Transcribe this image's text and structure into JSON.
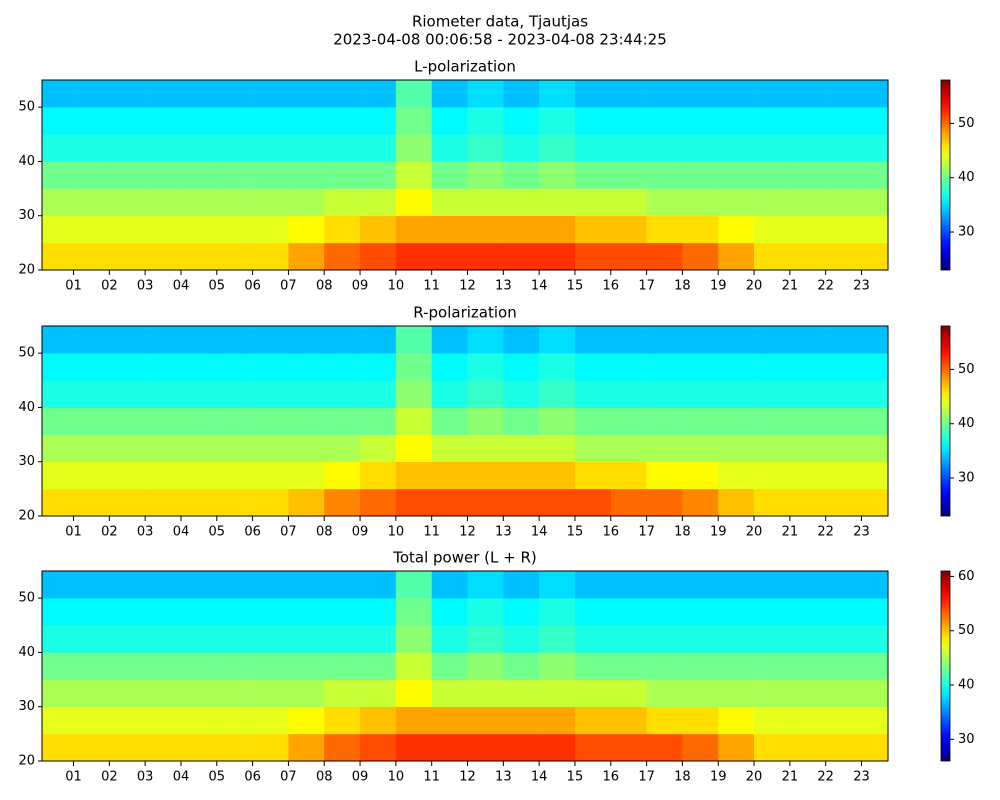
{
  "title": "Riometer data, Tjautjas",
  "subtitle": "2023-04-08 00:06:58 - 2023-04-08 23:44:25",
  "chart_data": [
    {
      "type": "heatmap",
      "title": "L-polarization",
      "colormap": "jet",
      "x_bins": [
        0.12,
        1,
        2,
        3,
        4,
        5,
        6,
        7,
        8,
        9,
        10,
        11,
        12,
        13,
        14,
        15,
        16,
        17,
        18,
        19,
        20,
        21,
        22,
        23,
        23.74
      ],
      "y_bins": [
        20,
        25,
        30,
        35,
        40,
        45,
        50,
        55
      ],
      "values": [
        [
          46,
          46,
          46,
          46,
          46,
          46,
          46,
          48,
          50,
          51,
          52,
          52,
          52,
          52,
          52,
          51,
          51,
          51,
          50,
          48,
          46,
          46,
          46,
          46
        ],
        [
          44,
          44,
          44,
          44,
          44,
          44,
          44,
          45,
          46,
          47,
          48,
          48,
          48,
          48,
          48,
          47,
          47,
          46,
          46,
          45,
          44,
          44,
          44,
          44
        ],
        [
          42,
          42,
          42,
          42,
          42,
          42,
          42,
          42,
          43,
          43,
          45,
          43,
          43,
          43,
          43,
          43,
          43,
          42,
          42,
          42,
          42,
          42,
          42,
          42
        ],
        [
          40,
          40,
          40,
          40,
          40,
          40,
          40,
          40,
          40,
          40,
          43,
          40,
          41,
          40,
          41,
          40,
          40,
          40,
          40,
          40,
          40,
          40,
          40,
          40
        ],
        [
          37,
          37,
          37,
          37,
          37,
          37,
          37,
          37,
          37,
          37,
          41,
          37,
          38,
          37,
          38,
          37,
          37,
          37,
          37,
          37,
          37,
          37,
          37,
          37
        ],
        [
          36,
          36,
          36,
          36,
          36,
          36,
          36,
          36,
          36,
          36,
          40,
          36,
          37,
          36,
          37,
          36,
          36,
          36,
          36,
          36,
          36,
          36,
          36,
          36
        ],
        [
          34,
          34,
          34,
          34,
          34,
          34,
          34,
          34,
          34,
          34,
          39,
          34,
          35,
          34,
          35,
          34,
          34,
          34,
          34,
          34,
          34,
          34,
          34,
          34
        ]
      ],
      "xlim": [
        0.12,
        23.74
      ],
      "ylim": [
        20,
        55
      ],
      "yticks": [
        20,
        30,
        40,
        50
      ],
      "xticks": [
        {
          "value": 1,
          "label": "01"
        },
        {
          "value": 2,
          "label": "02"
        },
        {
          "value": 3,
          "label": "03"
        },
        {
          "value": 4,
          "label": "04"
        },
        {
          "value": 5,
          "label": "05"
        },
        {
          "value": 6,
          "label": "06"
        },
        {
          "value": 7,
          "label": "07"
        },
        {
          "value": 8,
          "label": "08"
        },
        {
          "value": 9,
          "label": "09"
        },
        {
          "value": 10,
          "label": "10"
        },
        {
          "value": 11,
          "label": "11"
        },
        {
          "value": 12,
          "label": "12"
        },
        {
          "value": 13,
          "label": "13"
        },
        {
          "value": 14,
          "label": "14"
        },
        {
          "value": 15,
          "label": "15"
        },
        {
          "value": 16,
          "label": "16"
        },
        {
          "value": 17,
          "label": "17"
        },
        {
          "value": 18,
          "label": "18"
        },
        {
          "value": 19,
          "label": "19"
        },
        {
          "value": 20,
          "label": "20"
        },
        {
          "value": 21,
          "label": "21"
        },
        {
          "value": 22,
          "label": "22"
        },
        {
          "value": 23,
          "label": "23"
        }
      ],
      "clim": [
        23,
        58
      ],
      "cticks": [
        30,
        40,
        50
      ]
    },
    {
      "type": "heatmap",
      "title": "R-polarization",
      "colormap": "jet",
      "x_bins": [
        0.12,
        1,
        2,
        3,
        4,
        5,
        6,
        7,
        8,
        9,
        10,
        11,
        12,
        13,
        14,
        15,
        16,
        17,
        18,
        19,
        20,
        21,
        22,
        23,
        23.74
      ],
      "y_bins": [
        20,
        25,
        30,
        35,
        40,
        45,
        50,
        55
      ],
      "values": [
        [
          46,
          46,
          46,
          46,
          46,
          46,
          46,
          47,
          49,
          50,
          51,
          51,
          51,
          51,
          51,
          51,
          50,
          50,
          49,
          47,
          46,
          46,
          46,
          46
        ],
        [
          44,
          44,
          44,
          44,
          44,
          44,
          44,
          44,
          45,
          46,
          47,
          47,
          47,
          47,
          47,
          46,
          46,
          45,
          45,
          44,
          44,
          44,
          44,
          44
        ],
        [
          42,
          42,
          42,
          42,
          42,
          42,
          42,
          42,
          42,
          43,
          45,
          43,
          43,
          43,
          43,
          42,
          42,
          42,
          42,
          42,
          42,
          42,
          42,
          42
        ],
        [
          40,
          40,
          40,
          40,
          40,
          40,
          40,
          40,
          40,
          40,
          43,
          40,
          41,
          40,
          41,
          40,
          40,
          40,
          40,
          40,
          40,
          40,
          40,
          40
        ],
        [
          37,
          37,
          37,
          37,
          37,
          37,
          37,
          37,
          37,
          37,
          41,
          37,
          38,
          37,
          38,
          37,
          37,
          37,
          37,
          37,
          37,
          37,
          37,
          37
        ],
        [
          36,
          36,
          36,
          36,
          36,
          36,
          36,
          36,
          36,
          36,
          40,
          36,
          37,
          36,
          37,
          36,
          36,
          36,
          36,
          36,
          36,
          36,
          36,
          36
        ],
        [
          34,
          34,
          34,
          34,
          34,
          34,
          34,
          34,
          34,
          34,
          39,
          34,
          35,
          34,
          35,
          34,
          34,
          34,
          34,
          34,
          34,
          34,
          34,
          34
        ]
      ],
      "xlim": [
        0.12,
        23.74
      ],
      "ylim": [
        20,
        55
      ],
      "yticks": [
        20,
        30,
        40,
        50
      ],
      "xticks": [
        {
          "value": 1,
          "label": "01"
        },
        {
          "value": 2,
          "label": "02"
        },
        {
          "value": 3,
          "label": "03"
        },
        {
          "value": 4,
          "label": "04"
        },
        {
          "value": 5,
          "label": "05"
        },
        {
          "value": 6,
          "label": "06"
        },
        {
          "value": 7,
          "label": "07"
        },
        {
          "value": 8,
          "label": "08"
        },
        {
          "value": 9,
          "label": "09"
        },
        {
          "value": 10,
          "label": "10"
        },
        {
          "value": 11,
          "label": "11"
        },
        {
          "value": 12,
          "label": "12"
        },
        {
          "value": 13,
          "label": "13"
        },
        {
          "value": 14,
          "label": "14"
        },
        {
          "value": 15,
          "label": "15"
        },
        {
          "value": 16,
          "label": "16"
        },
        {
          "value": 17,
          "label": "17"
        },
        {
          "value": 18,
          "label": "18"
        },
        {
          "value": 19,
          "label": "19"
        },
        {
          "value": 20,
          "label": "20"
        },
        {
          "value": 21,
          "label": "21"
        },
        {
          "value": 22,
          "label": "22"
        },
        {
          "value": 23,
          "label": "23"
        }
      ],
      "clim": [
        23,
        58
      ],
      "cticks": [
        30,
        40,
        50
      ]
    },
    {
      "type": "heatmap",
      "title": "Total power (L + R)",
      "colormap": "jet",
      "x_bins": [
        0.12,
        1,
        2,
        3,
        4,
        5,
        6,
        7,
        8,
        9,
        10,
        11,
        12,
        13,
        14,
        15,
        16,
        17,
        18,
        19,
        20,
        21,
        22,
        23,
        23.74
      ],
      "y_bins": [
        20,
        25,
        30,
        35,
        40,
        45,
        50,
        55
      ],
      "values": [
        [
          49,
          49,
          49,
          49,
          49,
          49,
          49,
          51,
          53,
          54,
          55,
          55,
          55,
          55,
          55,
          54,
          54,
          54,
          53,
          51,
          49,
          49,
          49,
          49
        ],
        [
          47,
          47,
          47,
          47,
          47,
          47,
          47,
          48,
          49,
          50,
          51,
          51,
          51,
          51,
          51,
          50,
          50,
          49,
          49,
          48,
          47,
          47,
          47,
          47
        ],
        [
          45,
          45,
          45,
          45,
          45,
          45,
          45,
          45,
          46,
          46,
          48,
          46,
          46,
          46,
          46,
          46,
          46,
          45,
          45,
          45,
          45,
          45,
          45,
          45
        ],
        [
          43,
          43,
          43,
          43,
          43,
          43,
          43,
          43,
          43,
          43,
          46,
          43,
          44,
          43,
          44,
          43,
          43,
          43,
          43,
          43,
          43,
          43,
          43,
          43
        ],
        [
          40,
          40,
          40,
          40,
          40,
          40,
          40,
          40,
          40,
          40,
          44,
          40,
          41,
          40,
          41,
          40,
          40,
          40,
          40,
          40,
          40,
          40,
          40,
          40
        ],
        [
          39,
          39,
          39,
          39,
          39,
          39,
          39,
          39,
          39,
          39,
          43,
          39,
          40,
          39,
          40,
          39,
          39,
          39,
          39,
          39,
          39,
          39,
          39,
          39
        ],
        [
          37,
          37,
          37,
          37,
          37,
          37,
          37,
          37,
          37,
          37,
          42,
          37,
          38,
          37,
          38,
          37,
          37,
          37,
          37,
          37,
          37,
          37,
          37,
          37
        ]
      ],
      "xlim": [
        0.12,
        23.74
      ],
      "ylim": [
        20,
        55
      ],
      "yticks": [
        20,
        30,
        40,
        50
      ],
      "xticks": [
        {
          "value": 1,
          "label": "01"
        },
        {
          "value": 2,
          "label": "02"
        },
        {
          "value": 3,
          "label": "03"
        },
        {
          "value": 4,
          "label": "04"
        },
        {
          "value": 5,
          "label": "05"
        },
        {
          "value": 6,
          "label": "06"
        },
        {
          "value": 7,
          "label": "07"
        },
        {
          "value": 8,
          "label": "08"
        },
        {
          "value": 9,
          "label": "09"
        },
        {
          "value": 10,
          "label": "10"
        },
        {
          "value": 11,
          "label": "11"
        },
        {
          "value": 12,
          "label": "12"
        },
        {
          "value": 13,
          "label": "13"
        },
        {
          "value": 14,
          "label": "14"
        },
        {
          "value": 15,
          "label": "15"
        },
        {
          "value": 16,
          "label": "16"
        },
        {
          "value": 17,
          "label": "17"
        },
        {
          "value": 18,
          "label": "18"
        },
        {
          "value": 19,
          "label": "19"
        },
        {
          "value": 20,
          "label": "20"
        },
        {
          "value": 21,
          "label": "21"
        },
        {
          "value": 22,
          "label": "22"
        },
        {
          "value": 23,
          "label": "23"
        }
      ],
      "clim": [
        26,
        61
      ],
      "cticks": [
        30,
        40,
        50,
        60
      ]
    }
  ]
}
